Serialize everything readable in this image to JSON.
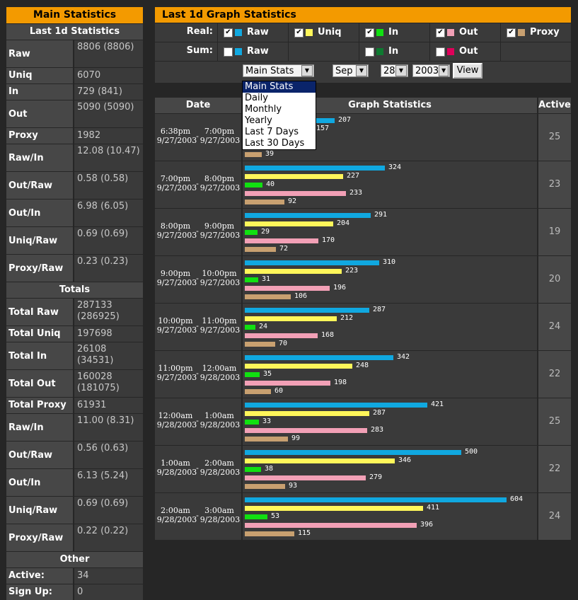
{
  "colors": {
    "raw": "#10a8e0",
    "uniq": "#fff65a",
    "in": "#11e011",
    "out": "#f2a0b6",
    "proxy": "#c8a070",
    "sum_in": "#0e7a30",
    "sum_out": "#e0005a"
  },
  "left": {
    "title": "Main Statistics",
    "sections": [
      {
        "header": "Last 1d Statistics",
        "rows": [
          {
            "label": "Raw",
            "value": "8806 (8806)"
          },
          {
            "label": "Uniq",
            "value": "6070"
          },
          {
            "label": "In",
            "value": "729 (841)"
          },
          {
            "label": "Out",
            "value": "5090 (5090)"
          },
          {
            "label": "Proxy",
            "value": "1982"
          },
          {
            "label": "Raw/In",
            "value": "12.08 (10.47)"
          },
          {
            "label": "Out/Raw",
            "value": "0.58 (0.58)"
          },
          {
            "label": "Out/In",
            "value": "6.98 (6.05)"
          },
          {
            "label": "Uniq/Raw",
            "value": "0.69 (0.69)"
          },
          {
            "label": "Proxy/Raw",
            "value": "0.23 (0.23)"
          }
        ]
      },
      {
        "header": "Totals",
        "rows": [
          {
            "label": "Total Raw",
            "value": "287133 (286925)"
          },
          {
            "label": "Total Uniq",
            "value": "197698"
          },
          {
            "label": "Total In",
            "value": "26108 (34531)"
          },
          {
            "label": "Total Out",
            "value": "160028 (181075)"
          },
          {
            "label": "Total Proxy",
            "value": "61931"
          },
          {
            "label": "Raw/In",
            "value": "11.00 (8.31)"
          },
          {
            "label": "Out/Raw",
            "value": "0.56 (0.63)"
          },
          {
            "label": "Out/In",
            "value": "6.13 (5.24)"
          },
          {
            "label": "Uniq/Raw",
            "value": "0.69 (0.69)"
          },
          {
            "label": "Proxy/Raw",
            "value": "0.22 (0.22)"
          }
        ]
      },
      {
        "header": "Other",
        "rows": [
          {
            "label": "Active:",
            "value": "34"
          },
          {
            "label": "Sign Up:",
            "value": "0"
          }
        ]
      }
    ]
  },
  "right": {
    "title": "Last 1d Graph Statistics",
    "real_label": "Real:",
    "sum_label": "Sum:",
    "real_items": [
      {
        "label": "Raw",
        "checked": true,
        "color": "raw"
      },
      {
        "label": "Uniq",
        "checked": true,
        "color": "uniq"
      },
      {
        "label": "In",
        "checked": true,
        "color": "in"
      },
      {
        "label": "Out",
        "checked": true,
        "color": "out"
      },
      {
        "label": "Proxy",
        "checked": true,
        "color": "proxy"
      }
    ],
    "sum_items": [
      {
        "label": "Raw",
        "checked": false,
        "color": "raw"
      },
      {
        "label": "",
        "checked": null,
        "color": ""
      },
      {
        "label": "In",
        "checked": false,
        "color": "sum_in"
      },
      {
        "label": "Out",
        "checked": false,
        "color": "sum_out"
      },
      {
        "label": "",
        "checked": null,
        "color": ""
      }
    ],
    "view_select": "Main Stats",
    "month_select": "Sep",
    "day_select": "28",
    "year_select": "2003",
    "view_button": "View",
    "dropdown_options": [
      "Main Stats",
      "Daily",
      "Monthly",
      "Yearly",
      "Last 7 Days",
      "Last 30 Days"
    ]
  },
  "table": {
    "headers": {
      "date": "Date",
      "graph": "Graph Statistics",
      "active": "Active"
    },
    "max_value": 604,
    "rows": [
      {
        "from_time": "6:38pm",
        "from_date": "9/27/2003",
        "to_time": "7:00pm",
        "to_date": "9/27/2003",
        "raw": 207,
        "uniq": 157,
        "in": null,
        "out": null,
        "proxy": 39,
        "active": "25"
      },
      {
        "from_time": "7:00pm",
        "from_date": "9/27/2003",
        "to_time": "8:00pm",
        "to_date": "9/27/2003",
        "raw": 324,
        "uniq": 227,
        "in": 40,
        "out": 233,
        "proxy": 92,
        "active": "23"
      },
      {
        "from_time": "8:00pm",
        "from_date": "9/27/2003",
        "to_time": "9:00pm",
        "to_date": "9/27/2003",
        "raw": 291,
        "uniq": 204,
        "in": 29,
        "out": 170,
        "proxy": 72,
        "active": "19"
      },
      {
        "from_time": "9:00pm",
        "from_date": "9/27/2003",
        "to_time": "10:00pm",
        "to_date": "9/27/2003",
        "raw": 310,
        "uniq": 223,
        "in": 31,
        "out": 196,
        "proxy": 106,
        "active": "20"
      },
      {
        "from_time": "10:00pm",
        "from_date": "9/27/2003",
        "to_time": "11:00pm",
        "to_date": "9/27/2003",
        "raw": 287,
        "uniq": 212,
        "in": 24,
        "out": 168,
        "proxy": 70,
        "active": "24"
      },
      {
        "from_time": "11:00pm",
        "from_date": "9/27/2003",
        "to_time": "12:00am",
        "to_date": "9/28/2003",
        "raw": 342,
        "uniq": 248,
        "in": 35,
        "out": 198,
        "proxy": 60,
        "active": "22"
      },
      {
        "from_time": "12:00am",
        "from_date": "9/28/2003",
        "to_time": "1:00am",
        "to_date": "9/28/2003",
        "raw": 421,
        "uniq": 287,
        "in": 33,
        "out": 283,
        "proxy": 99,
        "active": "25"
      },
      {
        "from_time": "1:00am",
        "from_date": "9/28/2003",
        "to_time": "2:00am",
        "to_date": "9/28/2003",
        "raw": 500,
        "uniq": 346,
        "in": 38,
        "out": 279,
        "proxy": 93,
        "active": "22"
      },
      {
        "from_time": "2:00am",
        "from_date": "9/28/2003",
        "to_time": "3:00am",
        "to_date": "9/28/2003",
        "raw": 604,
        "uniq": 411,
        "in": 53,
        "out": 396,
        "proxy": 115,
        "active": "24"
      }
    ]
  }
}
